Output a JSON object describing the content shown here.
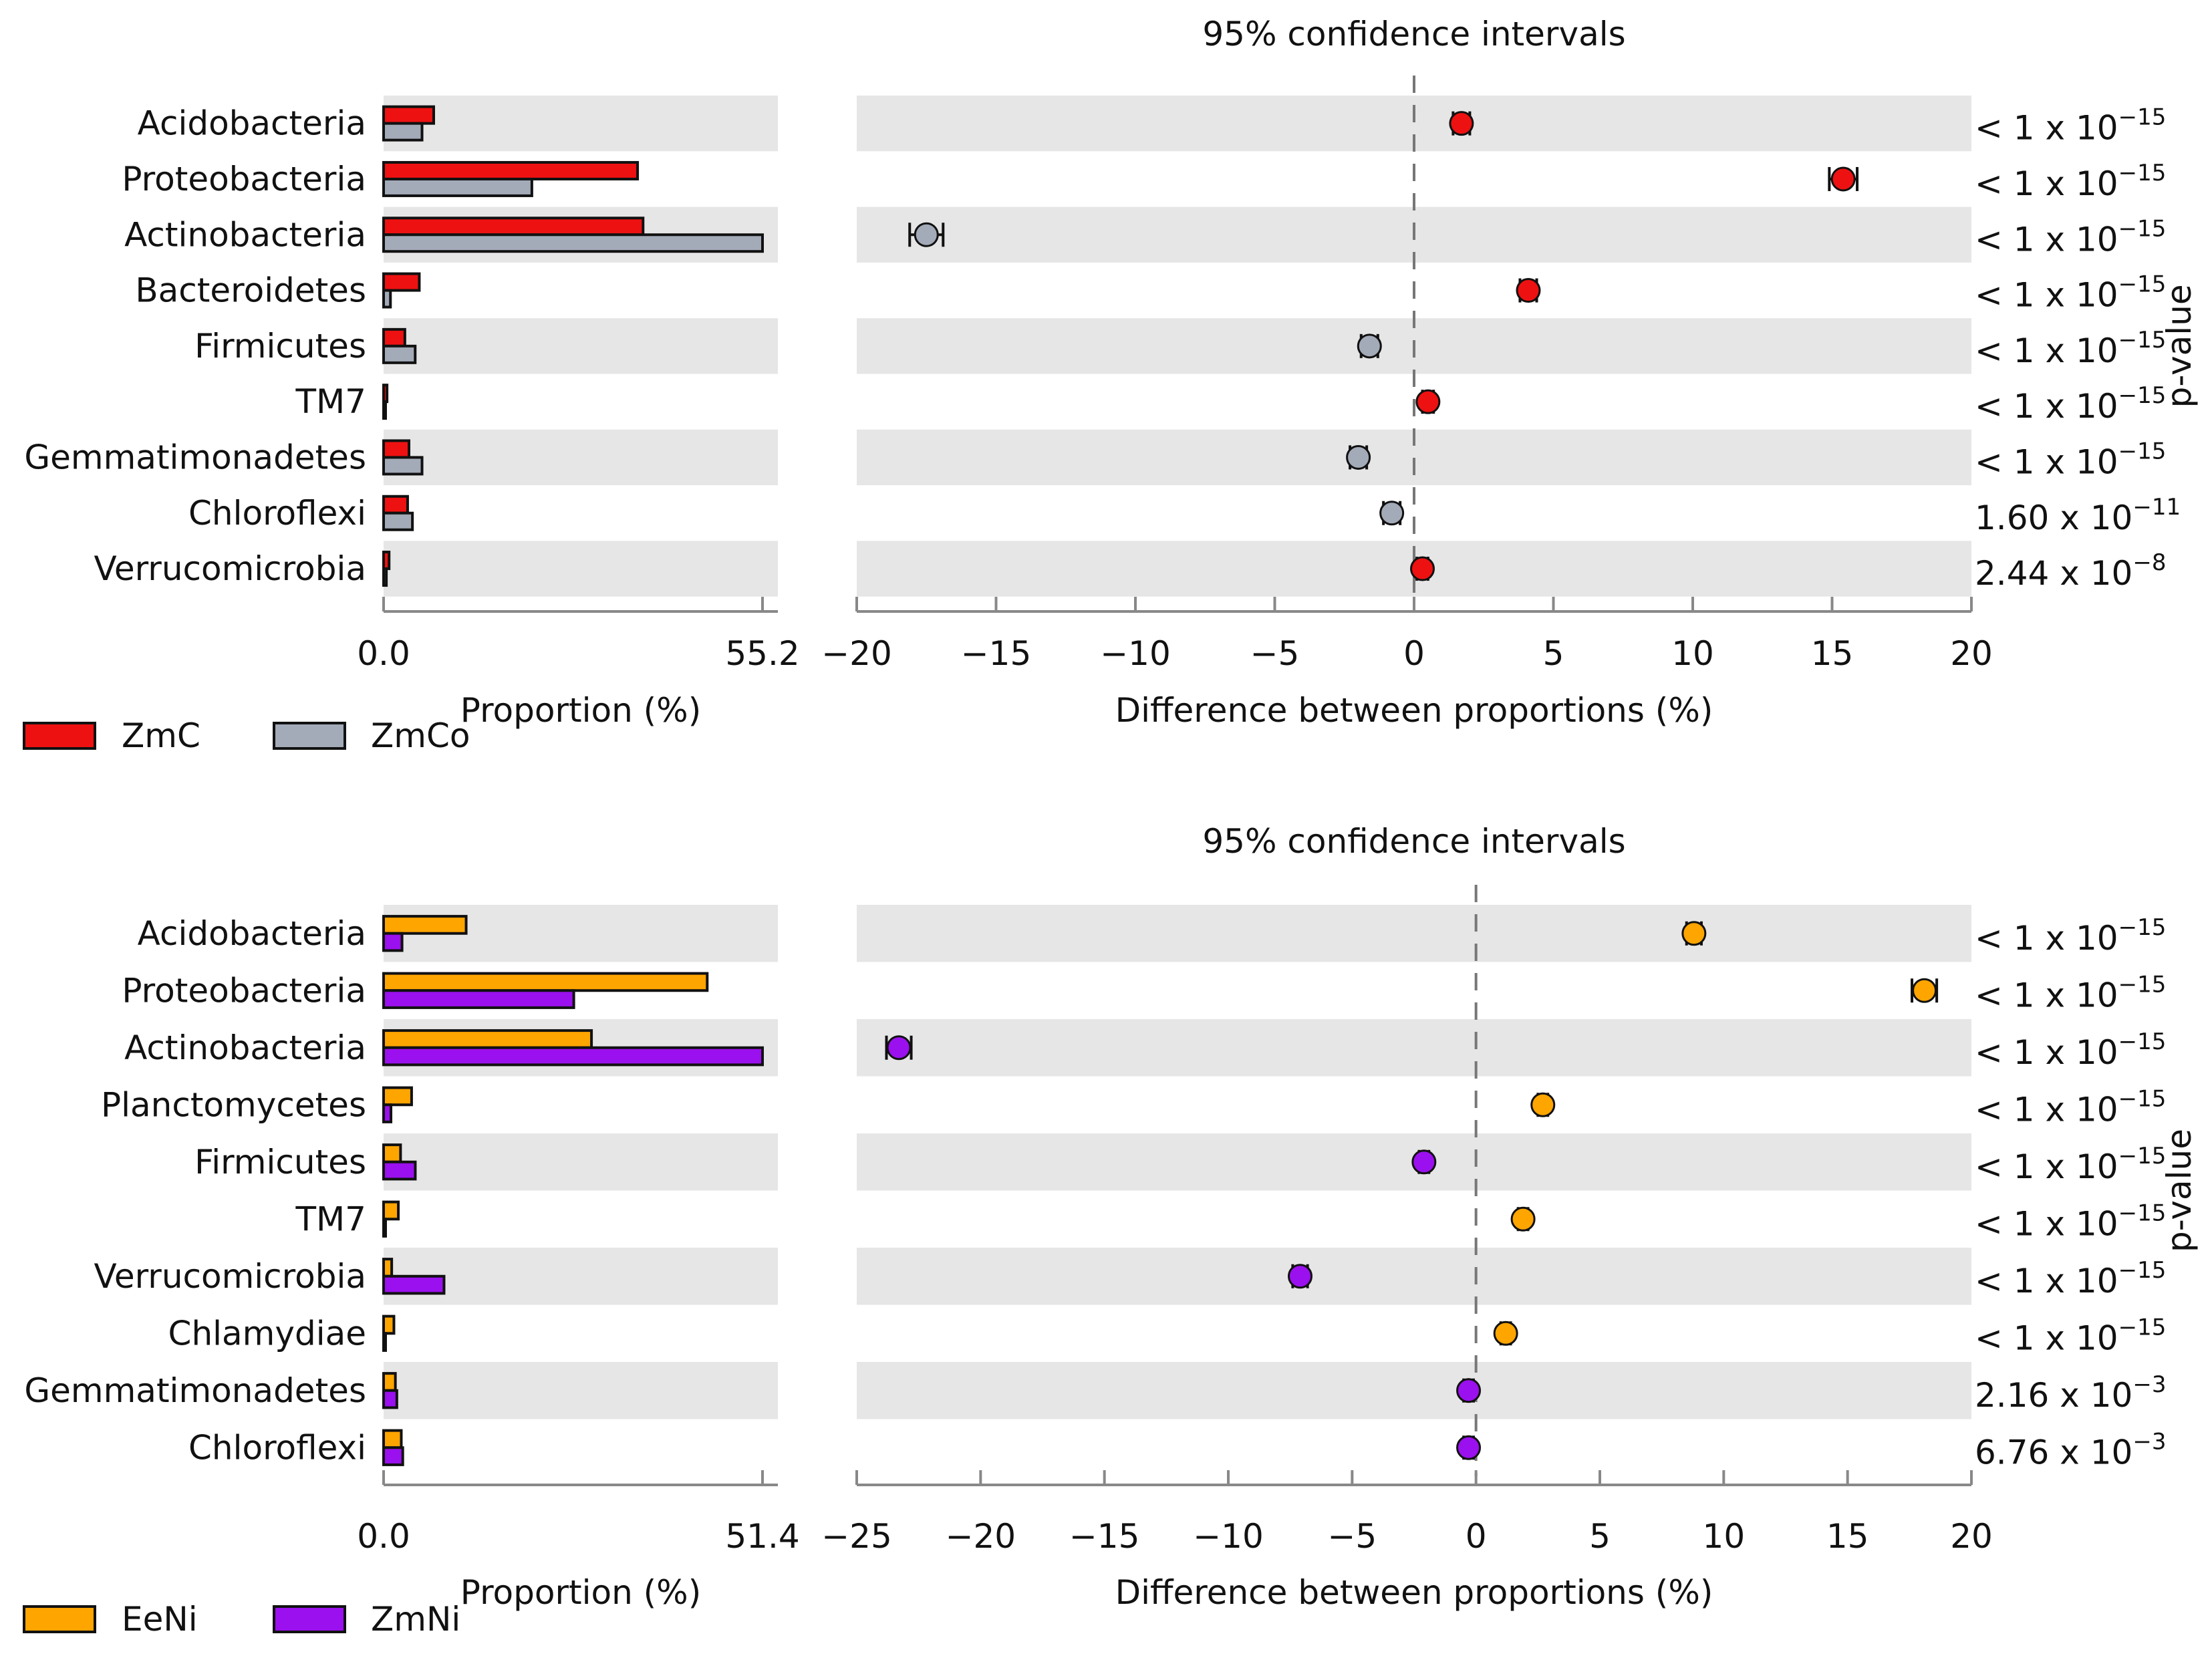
{
  "chart_data": [
    {
      "type": "bar",
      "chart_kind": "extended-error-bar",
      "ci_title": "95% confidence intervals",
      "xlabel_bar": "Proportion (%)",
      "xlabel_ci": "Difference between proportions (%)",
      "pvalue_label": "p-value",
      "bar_xlim": [
        0,
        55.2
      ],
      "bar_ticks": [
        "0.0",
        "55.2"
      ],
      "ci_xlim": [
        -20,
        20
      ],
      "ci_ticks": [
        -20,
        -15,
        -10,
        -5,
        0,
        5,
        10,
        15,
        20
      ],
      "series": [
        {
          "name": "ZmC",
          "color": "#ee1111"
        },
        {
          "name": "ZmCo",
          "color": "#a3aab8"
        }
      ],
      "categories": [
        "Acidobacteria",
        "Proteobacteria",
        "Actinobacteria",
        "Bacteroidetes",
        "Firmicutes",
        "TM7",
        "Gemmatimonadetes",
        "Chloroflexi",
        "Verrucomicrobia"
      ],
      "values_a": [
        7.3,
        37.0,
        37.8,
        5.2,
        3.1,
        0.5,
        3.7,
        3.5,
        0.8
      ],
      "values_b": [
        5.6,
        21.6,
        55.2,
        1.0,
        4.6,
        0.1,
        5.6,
        4.2,
        0.4
      ],
      "diff": [
        1.7,
        15.4,
        -17.5,
        4.1,
        -1.6,
        0.5,
        -2.0,
        -0.8,
        0.3
      ],
      "ci_low": [
        1.4,
        14.9,
        -18.1,
        3.8,
        -1.9,
        0.3,
        -2.3,
        -1.1,
        0.1
      ],
      "ci_high": [
        2.0,
        15.9,
        -16.9,
        4.4,
        -1.3,
        0.7,
        -1.7,
        -0.5,
        0.5
      ],
      "pvalues": [
        {
          "base": "< 1 x 10",
          "exp": "−15"
        },
        {
          "base": "< 1 x 10",
          "exp": "−15"
        },
        {
          "base": "< 1 x 10",
          "exp": "−15"
        },
        {
          "base": "< 1 x 10",
          "exp": "−15"
        },
        {
          "base": "< 1 x 10",
          "exp": "−15"
        },
        {
          "base": "< 1 x 10",
          "exp": "−15"
        },
        {
          "base": "< 1 x 10",
          "exp": "−15"
        },
        {
          "base": "1.60 x 10",
          "exp": "−11"
        },
        {
          "base": "2.44 x 10",
          "exp": "−8"
        }
      ]
    },
    {
      "type": "bar",
      "chart_kind": "extended-error-bar",
      "ci_title": "95% confidence intervals",
      "xlabel_bar": "Proportion (%)",
      "xlabel_ci": "Difference between proportions (%)",
      "pvalue_label": "p-value",
      "bar_xlim": [
        0,
        51.4
      ],
      "bar_ticks": [
        "0.0",
        "51.4"
      ],
      "ci_xlim": [
        -25,
        20
      ],
      "ci_ticks": [
        -25,
        -20,
        -15,
        -10,
        -5,
        0,
        5,
        10,
        15,
        20
      ],
      "series": [
        {
          "name": "EeNi",
          "color": "#ffa500"
        },
        {
          "name": "ZmNi",
          "color": "#9b10ee"
        }
      ],
      "categories": [
        "Acidobacteria",
        "Proteobacteria",
        "Actinobacteria",
        "Planctomycetes",
        "Firmicutes",
        "TM7",
        "Verrucomicrobia",
        "Chlamydiae",
        "Gemmatimonadetes",
        "Chloroflexi"
      ],
      "values_a": [
        11.2,
        43.9,
        28.2,
        3.8,
        2.3,
        2.0,
        1.1,
        1.4,
        1.6,
        2.4
      ],
      "values_b": [
        2.5,
        25.8,
        51.4,
        1.0,
        4.3,
        0.1,
        8.2,
        0.1,
        1.8,
        2.6
      ],
      "diff": [
        8.8,
        18.1,
        -23.3,
        2.7,
        -2.1,
        1.9,
        -7.1,
        1.2,
        -0.3,
        -0.3
      ],
      "ci_low": [
        8.5,
        17.6,
        -23.8,
        2.5,
        -2.3,
        1.7,
        -7.4,
        1.0,
        -0.5,
        -0.5
      ],
      "ci_high": [
        9.1,
        18.6,
        -22.8,
        2.9,
        -1.9,
        2.1,
        -6.8,
        1.4,
        -0.1,
        -0.1
      ],
      "pvalues": [
        {
          "base": "< 1 x 10",
          "exp": "−15"
        },
        {
          "base": "< 1 x 10",
          "exp": "−15"
        },
        {
          "base": "< 1 x 10",
          "exp": "−15"
        },
        {
          "base": "< 1 x 10",
          "exp": "−15"
        },
        {
          "base": "< 1 x 10",
          "exp": "−15"
        },
        {
          "base": "< 1 x 10",
          "exp": "−15"
        },
        {
          "base": "< 1 x 10",
          "exp": "−15"
        },
        {
          "base": "< 1 x 10",
          "exp": "−15"
        },
        {
          "base": "2.16 x 10",
          "exp": "−3"
        },
        {
          "base": "6.76 x 10",
          "exp": "−3"
        }
      ]
    }
  ]
}
